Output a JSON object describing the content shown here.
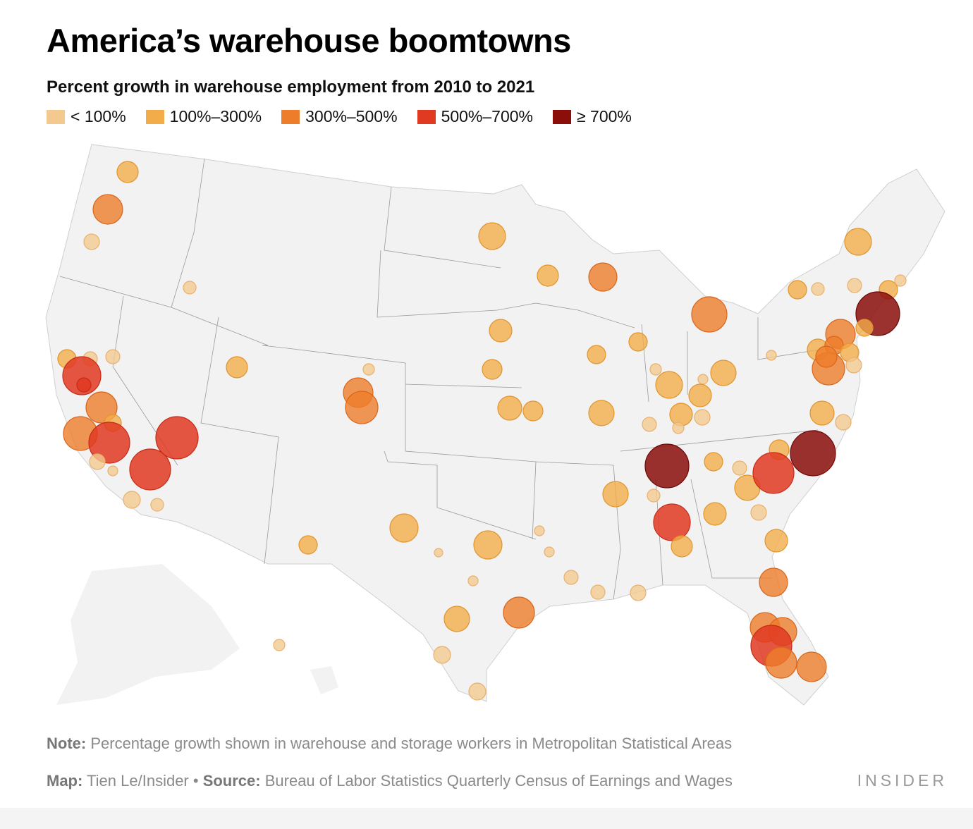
{
  "header": {
    "title": "America’s warehouse boomtowns",
    "subtitle": "Percent growth in warehouse employment from 2010 to 2021"
  },
  "legend": [
    {
      "label": "< 100%",
      "color": "#f3c98f"
    },
    {
      "label": "100%–300%",
      "color": "#f2ad4a"
    },
    {
      "label": "300%–500%",
      "color": "#ee7d2b"
    },
    {
      "label": "500%–700%",
      "color": "#e03a22"
    },
    {
      "label": "≥ 700%",
      "color": "#8b0e0b"
    }
  ],
  "footer": {
    "note_label": "Note:",
    "note_text": " Percentage growth shown in warehouse and storage workers in Metropolitan Statistical Areas",
    "map_label": "Map:",
    "map_text": " Tien Le/Insider • ",
    "source_label": "Source:",
    "source_text": " Bureau of Labor Statistics Quarterly Census of Earnings and Wages",
    "logo": "INSIDER"
  },
  "map": {
    "land_color": "#f2f2f2",
    "border_color": "#9a9a9a"
  }
}
